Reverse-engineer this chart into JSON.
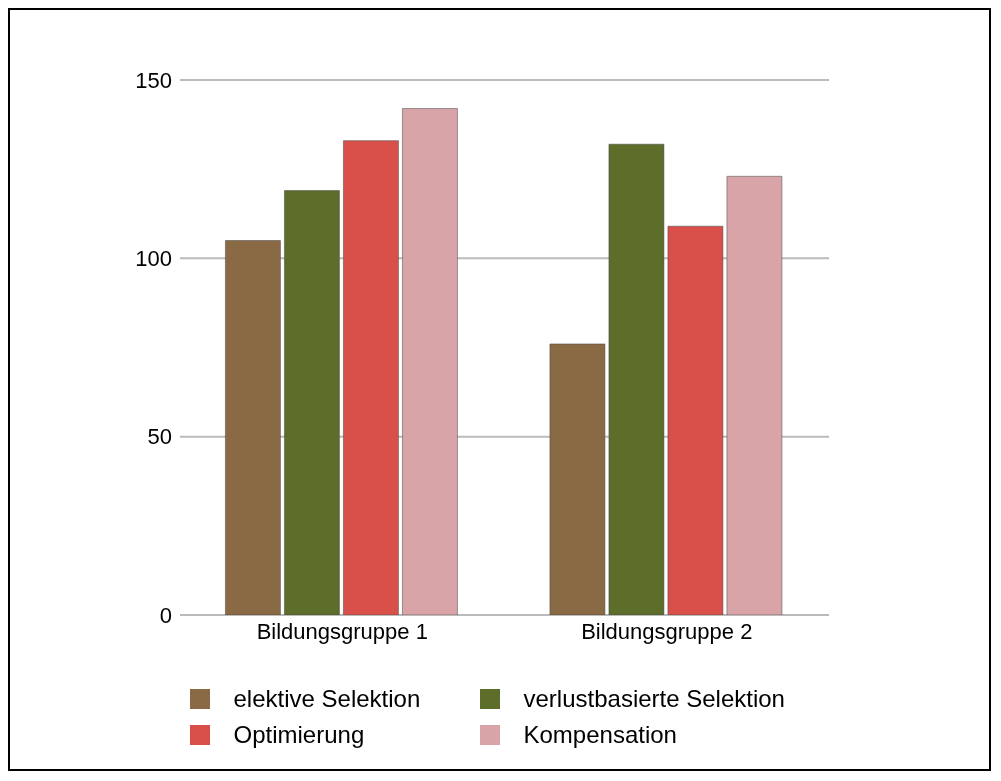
{
  "chart_data": {
    "type": "bar",
    "categories": [
      "Bildungsgruppe 1",
      "Bildungsgruppe 2"
    ],
    "series": [
      {
        "name": "elektive Selektion",
        "color": "#8a6a44",
        "values": [
          105,
          76
        ]
      },
      {
        "name": "verlustbasierte Selektion",
        "color": "#5c6e2a",
        "values": [
          119,
          132
        ]
      },
      {
        "name": "Optimierung",
        "color": "#d9504a",
        "values": [
          133,
          109
        ]
      },
      {
        "name": "Kompensation",
        "color": "#d8a4a8",
        "values": [
          142,
          123
        ]
      }
    ],
    "ylim": [
      0,
      150
    ],
    "yticks": [
      0,
      50,
      100,
      150
    ],
    "grid": "y",
    "legend": "bottom"
  }
}
